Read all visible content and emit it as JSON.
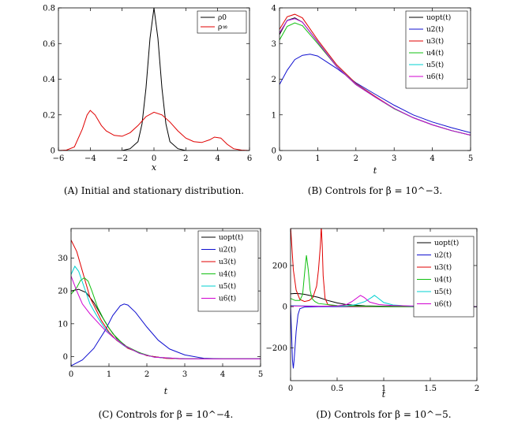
{
  "chart_data": [
    {
      "panel": "A",
      "type": "line",
      "caption": "(A) Initial and stationary distribution.",
      "xlabel": "x",
      "ylabel": "",
      "xlim": [
        -6,
        6
      ],
      "ylim": [
        0,
        0.8
      ],
      "xticks": [
        "−6",
        "−4",
        "−2",
        "0",
        "2",
        "4",
        "6"
      ],
      "xtick_values": [
        -6,
        -4,
        -2,
        0,
        2,
        4,
        6
      ],
      "yticks": [
        "0",
        "0.2",
        "0.4",
        "0.6",
        "0.8"
      ],
      "ytick_values": [
        0,
        0.2,
        0.4,
        0.6,
        0.8
      ],
      "legend_position": "top-right",
      "series": [
        {
          "name": "ρ0",
          "color": "#000000",
          "x": [
            -6,
            -2,
            -1.5,
            -1,
            -0.75,
            -0.5,
            -0.25,
            0,
            0.25,
            0.5,
            0.75,
            1,
            1.5,
            2,
            6
          ],
          "y": [
            0,
            0,
            0.01,
            0.05,
            0.15,
            0.35,
            0.63,
            0.8,
            0.63,
            0.35,
            0.15,
            0.05,
            0.01,
            0,
            0
          ]
        },
        {
          "name": "ρ∞",
          "color": "#e00000",
          "x": [
            -6,
            -5.5,
            -5,
            -4.5,
            -4.2,
            -4,
            -3.7,
            -3.3,
            -3,
            -2.5,
            -2,
            -1.5,
            -1,
            -0.5,
            0,
            0.5,
            1,
            1.5,
            2,
            2.5,
            3,
            3.5,
            3.8,
            4.2,
            4.6,
            5,
            5.5,
            6
          ],
          "y": [
            0,
            0.002,
            0.02,
            0.12,
            0.2,
            0.225,
            0.2,
            0.14,
            0.11,
            0.085,
            0.08,
            0.1,
            0.14,
            0.19,
            0.215,
            0.2,
            0.16,
            0.11,
            0.07,
            0.05,
            0.045,
            0.06,
            0.075,
            0.07,
            0.035,
            0.01,
            0.002,
            0
          ]
        }
      ]
    },
    {
      "panel": "B",
      "type": "line",
      "caption": "(B) Controls for β = 10^−3.",
      "xlabel": "t",
      "ylabel": "",
      "xlim": [
        0,
        5
      ],
      "ylim": [
        0,
        4
      ],
      "xticks": [
        "0",
        "1",
        "2",
        "3",
        "4",
        "5"
      ],
      "xtick_values": [
        0,
        1,
        2,
        3,
        4,
        5
      ],
      "yticks": [
        "0",
        "1",
        "2",
        "3",
        "4"
      ],
      "ytick_values": [
        0,
        1,
        2,
        3,
        4
      ],
      "legend_position": "top-right",
      "series": [
        {
          "name": "uopt(t)",
          "color": "#000000",
          "x": [
            0,
            0.2,
            0.4,
            0.6,
            1,
            1.5,
            2,
            2.5,
            3,
            3.5,
            4,
            4.5,
            5
          ],
          "y": [
            3.25,
            3.65,
            3.72,
            3.6,
            3.05,
            2.35,
            1.85,
            1.5,
            1.18,
            0.92,
            0.72,
            0.56,
            0.43
          ]
        },
        {
          "name": "u2(t)",
          "color": "#1010d0",
          "x": [
            0,
            0.2,
            0.4,
            0.6,
            0.8,
            1,
            1.5,
            2,
            2.5,
            3,
            3.5,
            4,
            4.5,
            5
          ],
          "y": [
            1.85,
            2.25,
            2.55,
            2.67,
            2.7,
            2.65,
            2.3,
            1.9,
            1.58,
            1.27,
            1.0,
            0.8,
            0.64,
            0.5
          ]
        },
        {
          "name": "u3(t)",
          "color": "#e00000",
          "x": [
            0,
            0.2,
            0.4,
            0.6,
            1,
            1.5,
            2,
            2.5,
            3,
            3.5,
            4,
            4.5,
            5
          ],
          "y": [
            3.4,
            3.75,
            3.82,
            3.72,
            3.1,
            2.4,
            1.88,
            1.52,
            1.18,
            0.92,
            0.72,
            0.56,
            0.43
          ]
        },
        {
          "name": "u4(t)",
          "color": "#10c010",
          "x": [
            0,
            0.2,
            0.4,
            0.6,
            1,
            1.5,
            2,
            2.5,
            3,
            3.5,
            4,
            4.5,
            5
          ],
          "y": [
            3.1,
            3.48,
            3.58,
            3.5,
            3.0,
            2.35,
            1.85,
            1.5,
            1.17,
            0.92,
            0.72,
            0.56,
            0.43
          ]
        },
        {
          "name": "u5(t)",
          "color": "#00d0d0",
          "x": [
            0,
            0.2,
            0.4,
            0.6,
            1,
            1.5,
            2,
            2.5,
            3,
            3.5,
            4,
            4.5,
            5
          ],
          "y": [
            3.3,
            3.65,
            3.7,
            3.6,
            3.05,
            2.36,
            1.86,
            1.5,
            1.18,
            0.92,
            0.72,
            0.56,
            0.43
          ]
        },
        {
          "name": "u6(t)",
          "color": "#d000d0",
          "x": [
            0,
            0.2,
            0.4,
            0.6,
            1,
            1.5,
            2,
            2.5,
            3,
            3.5,
            4,
            4.5,
            5
          ],
          "y": [
            3.3,
            3.64,
            3.7,
            3.6,
            3.04,
            2.35,
            1.85,
            1.5,
            1.18,
            0.92,
            0.72,
            0.56,
            0.43
          ]
        }
      ]
    },
    {
      "panel": "C",
      "type": "line",
      "caption": "(C) Controls for β = 10^−4.",
      "xlabel": "t",
      "ylabel": "",
      "xlim": [
        0,
        5
      ],
      "ylim": [
        -3,
        39
      ],
      "xticks": [
        "0",
        "1",
        "2",
        "3",
        "4",
        "5"
      ],
      "xtick_values": [
        0,
        1,
        2,
        3,
        4,
        5
      ],
      "yticks": [
        "0",
        "10",
        "20",
        "30"
      ],
      "ytick_values": [
        0,
        10,
        20,
        30
      ],
      "legend_position": "top-right",
      "series": [
        {
          "name": "uopt(t)",
          "color": "#000000",
          "x": [
            0,
            0.2,
            0.4,
            0.6,
            0.8,
            1,
            1.2,
            1.5,
            2,
            2.5,
            3,
            3.5,
            4,
            5
          ],
          "y": [
            20,
            20.5,
            19.5,
            16.5,
            12.5,
            8.7,
            5.6,
            2.7,
            0.3,
            -0.5,
            -0.7,
            -0.7,
            -0.7,
            -0.7
          ]
        },
        {
          "name": "u2(t)",
          "color": "#1010d0",
          "x": [
            0,
            0.3,
            0.6,
            0.9,
            1.1,
            1.3,
            1.4,
            1.5,
            1.7,
            2,
            2.3,
            2.6,
            3,
            3.5,
            4,
            5
          ],
          "y": [
            -2.8,
            -1,
            2.5,
            8,
            12.5,
            15.5,
            16,
            15.7,
            13.5,
            9,
            5,
            2.3,
            0.5,
            -0.5,
            -0.7,
            -0.7
          ]
        },
        {
          "name": "u3(t)",
          "color": "#e00000",
          "x": [
            0,
            0.15,
            0.3,
            0.5,
            0.8,
            1,
            1.2,
            1.5,
            2,
            2.5,
            3,
            4,
            5
          ],
          "y": [
            35.5,
            32,
            26,
            18,
            11,
            7.5,
            5,
            2.5,
            0.3,
            -0.5,
            -0.7,
            -0.7,
            -0.7
          ]
        },
        {
          "name": "u4(t)",
          "color": "#10c010",
          "x": [
            0,
            0.15,
            0.25,
            0.35,
            0.45,
            0.55,
            0.7,
            0.9,
            1.1,
            1.4,
            1.8,
            2.2,
            3,
            4,
            5
          ],
          "y": [
            19,
            21,
            23.2,
            24,
            23,
            20,
            15,
            10.5,
            7,
            3.5,
            1.2,
            -0.2,
            -0.7,
            -0.7,
            -0.7
          ]
        },
        {
          "name": "u5(t)",
          "color": "#00d0d0",
          "x": [
            0,
            0.1,
            0.2,
            0.35,
            0.5,
            0.7,
            0.9,
            1.1,
            1.4,
            1.8,
            2.2,
            3,
            4,
            5
          ],
          "y": [
            25,
            27.5,
            26,
            21,
            16,
            12,
            8.5,
            6,
            3.3,
            1,
            -0.2,
            -0.7,
            -0.7,
            -0.7
          ]
        },
        {
          "name": "u6(t)",
          "color": "#d000d0",
          "x": [
            0,
            0.15,
            0.3,
            0.5,
            0.7,
            0.9,
            1.1,
            1.4,
            1.8,
            2.2,
            3,
            4,
            5
          ],
          "y": [
            24.5,
            20,
            16,
            13,
            10.5,
            8,
            6,
            3.4,
            1,
            -0.2,
            -0.7,
            -0.7,
            -0.7
          ]
        }
      ]
    },
    {
      "panel": "D",
      "type": "line",
      "caption": "(D) Controls for β = 10^−5.",
      "xlabel": "t",
      "ylabel": "",
      "xlim": [
        0,
        2
      ],
      "ylim": [
        -360,
        380
      ],
      "xticks": [
        "0",
        "0.5",
        "1",
        "1.5",
        "2"
      ],
      "xtick_values": [
        0,
        0.5,
        1,
        1.5,
        2
      ],
      "yticks": [
        "−200",
        "0",
        "200"
      ],
      "ytick_values": [
        -200,
        0,
        200
      ],
      "legend_position": "top-right",
      "series": [
        {
          "name": "uopt(t)",
          "color": "#000000",
          "x": [
            0,
            0.05,
            0.1,
            0.15,
            0.2,
            0.3,
            0.4,
            0.5,
            0.6,
            0.8,
            1,
            1.5,
            2
          ],
          "y": [
            62,
            64,
            63,
            60,
            55,
            45,
            30,
            18,
            10,
            4,
            2,
            0,
            0
          ]
        },
        {
          "name": "u2(t)",
          "color": "#1010d0",
          "x": [
            0,
            0.01,
            0.02,
            0.03,
            0.04,
            0.06,
            0.08,
            0.1,
            0.15,
            0.3,
            0.6,
            1,
            1.5,
            2
          ],
          "y": [
            0,
            -120,
            -260,
            -300,
            -250,
            -120,
            -40,
            -10,
            -2,
            0,
            0,
            0,
            0,
            0
          ]
        },
        {
          "name": "u3(t)",
          "color": "#e00000",
          "x": [
            0,
            0.01,
            0.03,
            0.06,
            0.1,
            0.15,
            0.2,
            0.24,
            0.28,
            0.3,
            0.32,
            0.33,
            0.34,
            0.35,
            0.37,
            0.4,
            0.5,
            1,
            2
          ],
          "y": [
            390,
            320,
            180,
            80,
            35,
            25,
            30,
            45,
            100,
            180,
            300,
            390,
            300,
            150,
            40,
            10,
            2,
            0,
            0
          ]
        },
        {
          "name": "u4(t)",
          "color": "#10c010",
          "x": [
            0,
            0.05,
            0.1,
            0.13,
            0.15,
            0.17,
            0.19,
            0.21,
            0.23,
            0.26,
            0.3,
            0.5,
            1,
            2
          ],
          "y": [
            40,
            30,
            30,
            60,
            160,
            250,
            180,
            80,
            40,
            25,
            15,
            5,
            0,
            0
          ]
        },
        {
          "name": "u5(t)",
          "color": "#00d0d0",
          "x": [
            0,
            0.2,
            0.4,
            0.6,
            0.7,
            0.8,
            0.87,
            0.9,
            0.93,
            1,
            1.1,
            1.3,
            2
          ],
          "y": [
            5,
            3,
            2,
            3,
            10,
            25,
            45,
            55,
            45,
            20,
            8,
            2,
            0
          ]
        },
        {
          "name": "u6(t)",
          "color": "#d000d0",
          "x": [
            0,
            0.3,
            0.5,
            0.6,
            0.66,
            0.72,
            0.75,
            0.79,
            0.85,
            0.95,
            1.1,
            1.5,
            2
          ],
          "y": [
            3,
            2,
            3,
            10,
            25,
            45,
            55,
            45,
            22,
            10,
            5,
            2,
            0
          ]
        }
      ]
    }
  ]
}
